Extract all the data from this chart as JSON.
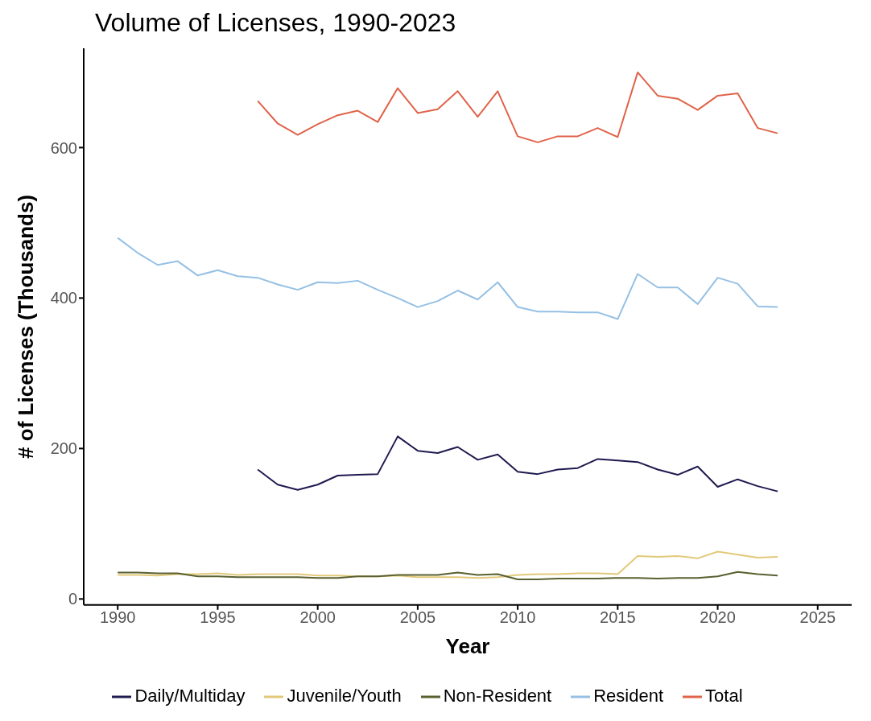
{
  "chart_data": {
    "type": "line",
    "title": "Volume of Licenses, 1990-2023",
    "xlabel": "Year",
    "ylabel": "# of Licenses (Thousands)",
    "x": [
      1990,
      1991,
      1992,
      1993,
      1994,
      1995,
      1996,
      1997,
      1998,
      1999,
      2000,
      2001,
      2002,
      2003,
      2004,
      2005,
      2006,
      2007,
      2008,
      2009,
      2010,
      2011,
      2012,
      2013,
      2014,
      2015,
      2016,
      2017,
      2018,
      2019,
      2020,
      2021,
      2022,
      2023
    ],
    "series": [
      {
        "name": "Daily/Multiday",
        "color": "#1f1a4f",
        "values": [
          null,
          null,
          null,
          null,
          null,
          null,
          null,
          172,
          152,
          145,
          152,
          164,
          165,
          166,
          216,
          197,
          194,
          202,
          185,
          192,
          169,
          166,
          172,
          174,
          186,
          184,
          182,
          172,
          165,
          176,
          149,
          159,
          150,
          143
        ]
      },
      {
        "name": "Juvenile/Youth",
        "color": "#e2c97a",
        "values": [
          32,
          32,
          31,
          33,
          33,
          34,
          32,
          33,
          33,
          33,
          31,
          31,
          30,
          30,
          31,
          29,
          29,
          29,
          28,
          29,
          32,
          33,
          33,
          34,
          34,
          33,
          57,
          56,
          57,
          54,
          63,
          59,
          55,
          56
        ]
      },
      {
        "name": "Non-Resident",
        "color": "#5a6030",
        "values": [
          35,
          35,
          34,
          34,
          30,
          30,
          29,
          29,
          29,
          29,
          28,
          28,
          30,
          30,
          32,
          32,
          32,
          35,
          32,
          33,
          26,
          26,
          27,
          27,
          27,
          28,
          28,
          27,
          28,
          28,
          30,
          36,
          33,
          31
        ]
      },
      {
        "name": "Resident",
        "color": "#95c0e4",
        "values": [
          480,
          460,
          444,
          449,
          430,
          437,
          429,
          427,
          418,
          411,
          421,
          420,
          423,
          411,
          400,
          388,
          396,
          410,
          398,
          421,
          388,
          382,
          382,
          381,
          381,
          372,
          432,
          414,
          414,
          392,
          427,
          419,
          389,
          388
        ]
      },
      {
        "name": "Total",
        "color": "#e0634a",
        "values": [
          null,
          null,
          null,
          null,
          null,
          null,
          null,
          662,
          632,
          617,
          631,
          643,
          649,
          634,
          679,
          646,
          651,
          675,
          641,
          675,
          615,
          607,
          615,
          615,
          626,
          614,
          700,
          669,
          665,
          650,
          669,
          672,
          626,
          619
        ]
      }
    ],
    "xlim": [
      1988.3,
      2026.7
    ],
    "xticks": [
      1990,
      1995,
      2000,
      2005,
      2010,
      2015,
      2020,
      2025
    ],
    "ylim": [
      -8,
      732
    ],
    "yticks": [
      0,
      200,
      400,
      600
    ],
    "grid": false,
    "legend": "bottom",
    "marker": "none",
    "line_style": "solid"
  }
}
